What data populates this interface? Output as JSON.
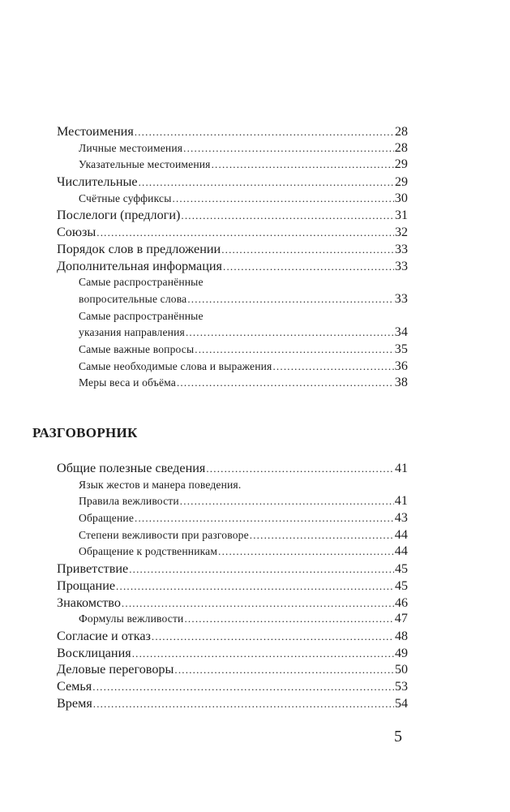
{
  "section1": [
    {
      "title": "Местоимения",
      "page": "28"
    },
    {
      "title": "Личные местоимения",
      "page": "28"
    },
    {
      "title": "Указательные местоимения",
      "page": "29"
    },
    {
      "title": "Числительные",
      "page": "29"
    },
    {
      "title": "Счётные суффиксы",
      "page": "30"
    },
    {
      "title": "Послелоги (предлоги)",
      "page": "31"
    },
    {
      "title": "Союзы",
      "page": "32"
    },
    {
      "title": "Порядок слов в предложении",
      "page": "33"
    },
    {
      "title": "Дополнительная информация",
      "page": "33"
    },
    {
      "title_line1": "Самые распространённые",
      "title": "вопросительные слова",
      "page": "33"
    },
    {
      "title_line1": "Самые распространённые",
      "title": "указания направления",
      "page": "34"
    },
    {
      "title": "Самые важные вопросы",
      "page": "35"
    },
    {
      "title": "Самые необходимые слова и выражения",
      "page": "36"
    },
    {
      "title": "Меры веса и объёма",
      "page": "38"
    }
  ],
  "heading": "РАЗГОВОРНИК",
  "section2": [
    {
      "title": "Общие полезные сведения",
      "page": "41"
    },
    {
      "title_line1": "Язык жестов и манера поведения.",
      "title": "Правила вежливости",
      "page": "41"
    },
    {
      "title": "Обращение",
      "page": "43"
    },
    {
      "title": "Степени вежливости при разговоре",
      "page": "44"
    },
    {
      "title": "Обращение к родственникам",
      "page": "44"
    },
    {
      "title": "Приветствие",
      "page": "45"
    },
    {
      "title": "Прощание",
      "page": "45"
    },
    {
      "title": "Знакомство",
      "page": "46"
    },
    {
      "title": "Формулы вежливости",
      "page": "47"
    },
    {
      "title": "Согласие и отказ",
      "page": "48"
    },
    {
      "title": "Восклицания",
      "page": "49"
    },
    {
      "title": "Деловые переговоры",
      "page": "50"
    },
    {
      "title": "Семья",
      "page": "53"
    },
    {
      "title": "Время",
      "page": "54"
    }
  ],
  "page_number": "5"
}
